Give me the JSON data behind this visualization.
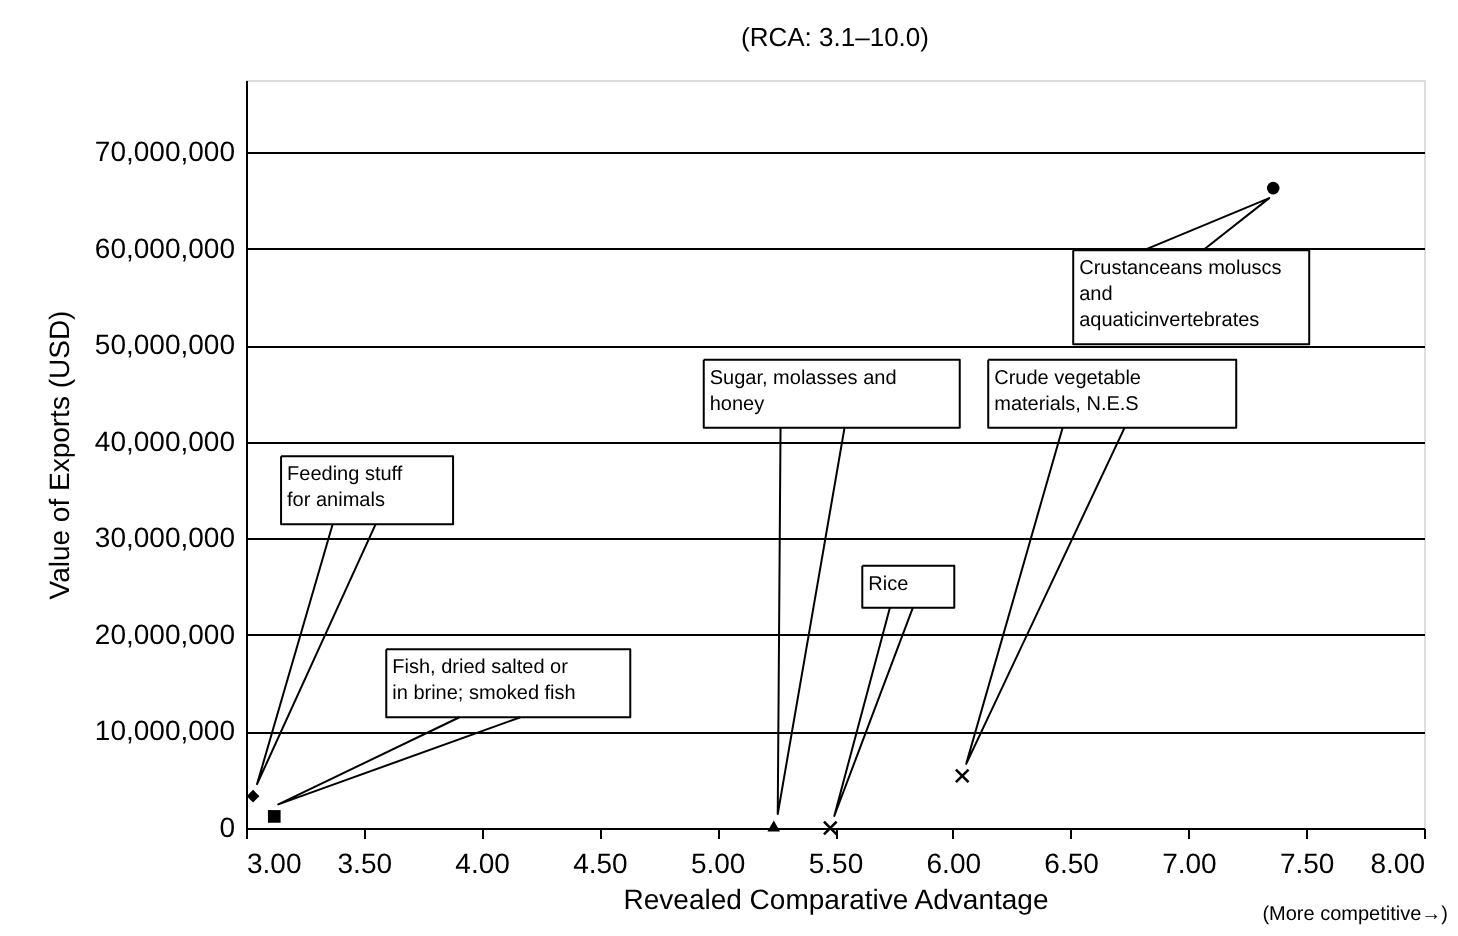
{
  "chart_data": {
    "type": "scatter",
    "title": "(RCA: 3.1–10.0)",
    "xlabel": "Revealed Comparative Advantage",
    "ylabel": "Value of Exports (USD)",
    "xlim": [
      3.0,
      8.0
    ],
    "xticks": [
      {
        "value": 3.0,
        "label": "3.00"
      },
      {
        "value": 3.5,
        "label": "3.50"
      },
      {
        "value": 4.0,
        "label": "4.00"
      },
      {
        "value": 4.5,
        "label": "4.50"
      },
      {
        "value": 5.0,
        "label": "5.00"
      },
      {
        "value": 5.5,
        "label": "5.50"
      },
      {
        "value": 6.0,
        "label": "6.00"
      },
      {
        "value": 6.5,
        "label": "6.50"
      },
      {
        "value": 7.0,
        "label": "7.00"
      },
      {
        "value": 7.5,
        "label": "7.50"
      },
      {
        "value": 8.0,
        "label": "8.00"
      }
    ],
    "ylim": [
      0,
      77500000
    ],
    "yticks": [
      {
        "value": 0,
        "label": "0"
      },
      {
        "value": 10000000,
        "label": "10,000,000"
      },
      {
        "value": 20000000,
        "label": "20,000,000"
      },
      {
        "value": 30000000,
        "label": "30,000,000"
      },
      {
        "value": 40000000,
        "label": "40,000,000"
      },
      {
        "value": 50000000,
        "label": "50,000,000"
      },
      {
        "value": 60000000,
        "label": "60,000,000"
      },
      {
        "value": 70000000,
        "label": "70,000,000"
      }
    ],
    "grid": "y",
    "series": [
      {
        "color": "#000000",
        "marker": "diamond",
        "x": [
          3.03
        ],
        "values": [
          3300000
        ]
      },
      {
        "color": "#000000",
        "marker": "square",
        "x": [
          3.12
        ],
        "values": [
          1200000
        ]
      },
      {
        "color": "#000000",
        "marker": "triangle",
        "x": [
          5.24
        ],
        "values": [
          200000
        ]
      },
      {
        "color": "#000000",
        "marker": "cross",
        "x": [
          5.48
        ],
        "values": [
          0
        ]
      },
      {
        "color": "#000000",
        "marker": "cross",
        "x": [
          6.04
        ],
        "values": [
          5400000
        ]
      },
      {
        "color": "#000000",
        "marker": "circle",
        "x": [
          7.36
        ],
        "values": [
          66300000
        ]
      }
    ],
    "annotations": [
      "Feeding stuff for animals",
      "Fish, dried salted or in brine; smoked fish",
      "Sugar, molasses and honey",
      "Rice",
      "Crude vegetable materials, N.E.S",
      "Crustanceans moluscs and aquaticinvertebrates",
      "(More competitive→)"
    ]
  }
}
